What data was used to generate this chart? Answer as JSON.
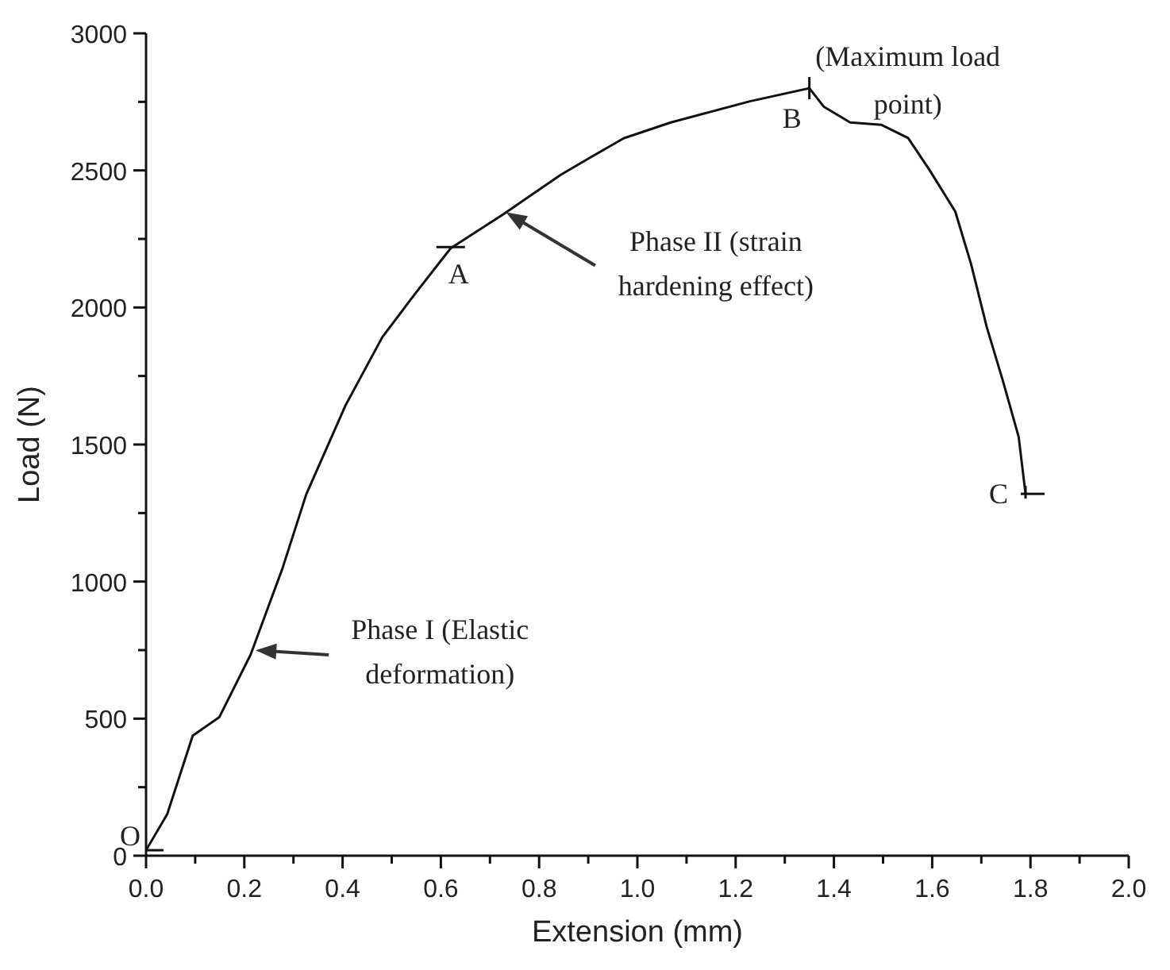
{
  "chart_data": {
    "type": "line",
    "xlabel": "Extension (mm)",
    "ylabel": "Load (N)",
    "x": [
      0,
      0.043,
      0.095,
      0.149,
      0.213,
      0.278,
      0.326,
      0.406,
      0.481,
      0.545,
      0.62,
      0.727,
      0.844,
      0.908,
      0.972,
      1.068,
      1.229,
      1.35,
      1.379,
      1.433,
      1.497,
      1.551,
      1.594,
      1.647,
      1.679,
      1.711,
      1.743,
      1.776,
      1.79
    ],
    "series": [
      {
        "color": "#111111",
        "values": [
          20,
          151,
          438,
          505,
          734,
          1050,
          1318,
          1643,
          1892,
          2044,
          2216,
          2340,
          2484,
          2551,
          2617,
          2675,
          2752,
          2800,
          2733,
          2675,
          2666,
          2618,
          2503,
          2350,
          2159,
          1929,
          1738,
          1528,
          1320
        ]
      }
    ],
    "xlim": [
      0,
      2
    ],
    "xticks": [
      {
        "value": 0,
        "label": "0.0"
      },
      {
        "value": 0.1,
        "label": null
      },
      {
        "value": 0.2,
        "label": "0.2"
      },
      {
        "value": 0.3,
        "label": null
      },
      {
        "value": 0.4,
        "label": "0.4"
      },
      {
        "value": 0.5,
        "label": null
      },
      {
        "value": 0.6,
        "label": "0.6"
      },
      {
        "value": 0.7,
        "label": null
      },
      {
        "value": 0.8,
        "label": "0.8"
      },
      {
        "value": 0.9,
        "label": null
      },
      {
        "value": 1,
        "label": "1.0"
      },
      {
        "value": 1.1,
        "label": null
      },
      {
        "value": 1.2,
        "label": "1.2"
      },
      {
        "value": 1.3,
        "label": null
      },
      {
        "value": 1.4,
        "label": "1.4"
      },
      {
        "value": 1.5,
        "label": null
      },
      {
        "value": 1.6,
        "label": "1.6"
      },
      {
        "value": 1.7,
        "label": null
      },
      {
        "value": 1.8,
        "label": "1.8"
      },
      {
        "value": 1.9,
        "label": null
      },
      {
        "value": 2,
        "label": "2.0"
      }
    ],
    "ylim": [
      0,
      3000
    ],
    "yticks": [
      0,
      {
        "value": 250,
        "label": null
      },
      500,
      {
        "value": 750,
        "label": null
      },
      1000,
      {
        "value": 1250,
        "label": null
      },
      1500,
      {
        "value": 1750,
        "label": null
      },
      2000,
      {
        "value": 2250,
        "label": null
      },
      2500,
      {
        "value": 2750,
        "label": null
      },
      3000
    ],
    "marker": "none",
    "line_style": "solid",
    "annotations": [
      {
        "text": "O",
        "x": 0,
        "y": 20
      },
      {
        "text": "A",
        "x": 0.62,
        "y": 2220
      },
      {
        "text": "B",
        "x": 1.35,
        "y": 2800
      },
      {
        "text": "C",
        "x": 1.79,
        "y": 1320
      },
      {
        "text": "(Maximum load point)",
        "x": 1.35,
        "y": 2800
      },
      {
        "text": "Phase I (Elastic deformation)",
        "x": 0.22,
        "y": 750
      },
      {
        "text": "Phase II (strain hardening effect)",
        "x": 0.73,
        "y": 2350
      }
    ]
  }
}
